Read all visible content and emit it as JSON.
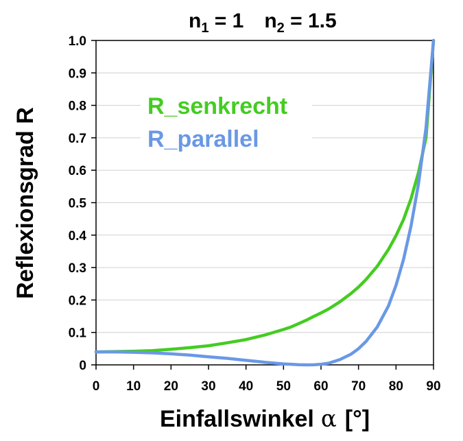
{
  "chart_data": {
    "type": "line",
    "title": {
      "n1_base": "n",
      "n1_sub": "1",
      "n1_rest": " = 1",
      "n2_base": "n",
      "n2_sub": "2",
      "n2_rest": " = 1.5"
    },
    "xlabel": "Einfallswinkel",
    "xlabel_symbol": "α",
    "xlabel_unit": "[°]",
    "ylabel": "Reflexionsgrad R",
    "xlim": [
      0,
      90
    ],
    "ylim": [
      0,
      1
    ],
    "xticks": [
      "0",
      "10",
      "20",
      "30",
      "40",
      "50",
      "60",
      "70",
      "80",
      "90"
    ],
    "yticks": [
      "0",
      "0.1",
      "0.2",
      "0.3",
      "0.4",
      "0.5",
      "0.6",
      "0.7",
      "0.8",
      "0.9",
      "1.0"
    ],
    "grid": "horizontal",
    "x": [
      0,
      5,
      10,
      15,
      20,
      25,
      30,
      35,
      40,
      45,
      50,
      52,
      54,
      56.3,
      58,
      60,
      62,
      65,
      68,
      70,
      72,
      75,
      78,
      80,
      82,
      84,
      86,
      88,
      90
    ],
    "series": [
      {
        "name": "R_senkrecht",
        "color": "#44cc22",
        "values": [
          0.04,
          0.041,
          0.042,
          0.044,
          0.048,
          0.053,
          0.059,
          0.068,
          0.078,
          0.092,
          0.109,
          0.117,
          0.127,
          0.139,
          0.149,
          0.16,
          0.172,
          0.194,
          0.22,
          0.24,
          0.263,
          0.304,
          0.356,
          0.398,
          0.448,
          0.512,
          0.593,
          0.7,
          1.0
        ]
      },
      {
        "name": "R_parallel",
        "color": "#6a98e6",
        "values": [
          0.04,
          0.04,
          0.039,
          0.037,
          0.034,
          0.03,
          0.025,
          0.02,
          0.014,
          0.008,
          0.003,
          0.002,
          0.0007,
          0.0,
          0.0003,
          0.002,
          0.005,
          0.016,
          0.033,
          0.05,
          0.072,
          0.117,
          0.182,
          0.245,
          0.325,
          0.428,
          0.558,
          0.731,
          1.0
        ]
      }
    ]
  }
}
